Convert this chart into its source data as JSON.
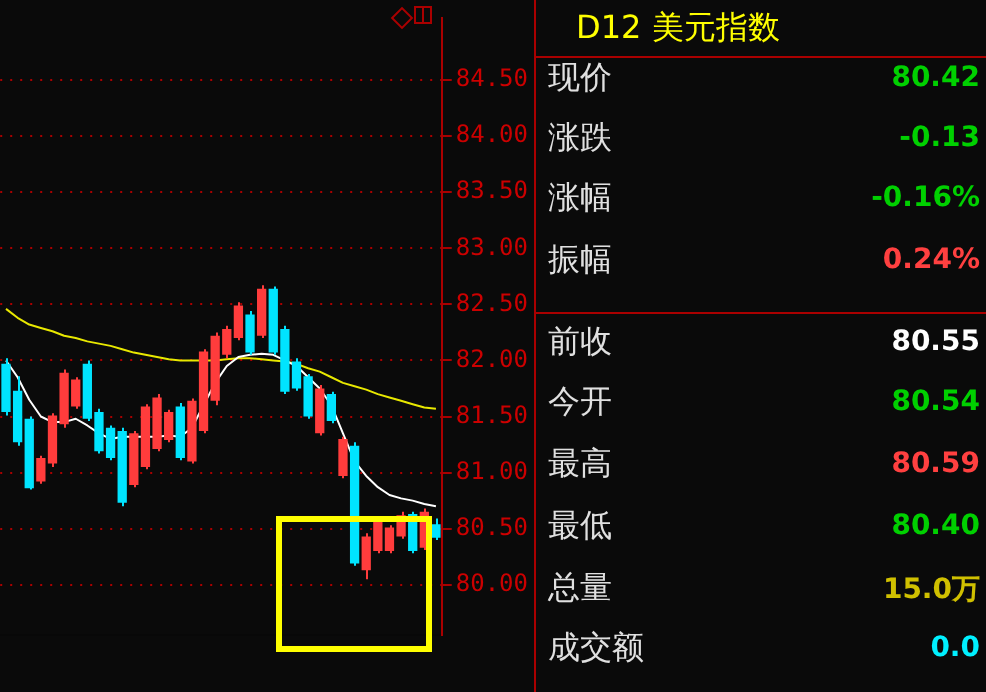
{
  "chart_data": [
    {
      "type": "candlestick",
      "categories": [
        null,
        null,
        null,
        null,
        null,
        null,
        null,
        null,
        null,
        null,
        null,
        null,
        null,
        null,
        null,
        null,
        null,
        null,
        null,
        null,
        null,
        null,
        null,
        null,
        null,
        null,
        null,
        null,
        null,
        null,
        null,
        null,
        null,
        null,
        null,
        null,
        null,
        null
      ],
      "ohlc": [
        [
          81.97,
          82.02,
          81.51,
          81.54
        ],
        [
          81.73,
          81.86,
          81.24,
          81.27
        ],
        [
          81.48,
          81.5,
          80.85,
          80.86
        ],
        [
          80.92,
          81.15,
          80.9,
          81.13
        ],
        [
          81.08,
          81.53,
          81.05,
          81.51
        ],
        [
          81.43,
          81.92,
          81.4,
          81.89
        ],
        [
          81.59,
          81.85,
          81.57,
          81.83
        ],
        [
          81.97,
          82.0,
          81.46,
          81.48
        ],
        [
          81.54,
          81.57,
          81.17,
          81.19
        ],
        [
          81.4,
          81.42,
          81.11,
          81.13
        ],
        [
          81.37,
          81.4,
          80.7,
          80.73
        ],
        [
          80.89,
          81.37,
          80.87,
          81.35
        ],
        [
          81.05,
          81.61,
          81.03,
          81.59
        ],
        [
          81.21,
          81.7,
          81.19,
          81.67
        ],
        [
          81.29,
          81.56,
          81.27,
          81.54
        ],
        [
          81.59,
          81.62,
          81.11,
          81.13
        ],
        [
          81.1,
          81.66,
          81.08,
          81.64
        ],
        [
          81.37,
          82.1,
          81.35,
          82.08
        ],
        [
          81.64,
          82.25,
          81.6,
          82.22
        ],
        [
          82.05,
          82.31,
          82.02,
          82.28
        ],
        [
          82.2,
          82.52,
          82.18,
          82.49
        ],
        [
          82.41,
          82.44,
          82.05,
          82.07
        ],
        [
          82.22,
          82.67,
          82.2,
          82.64
        ],
        [
          82.64,
          82.66,
          82.05,
          82.07
        ],
        [
          82.28,
          82.31,
          81.7,
          81.72
        ],
        [
          81.99,
          82.02,
          81.73,
          81.75
        ],
        [
          81.86,
          81.88,
          81.48,
          81.5
        ],
        [
          81.35,
          81.78,
          81.33,
          81.75
        ],
        [
          81.7,
          81.72,
          81.44,
          81.46
        ],
        [
          80.97,
          81.32,
          80.95,
          81.3
        ],
        [
          81.24,
          81.27,
          80.17,
          80.19
        ],
        [
          80.13,
          80.46,
          80.05,
          80.43
        ],
        [
          80.3,
          80.6,
          80.28,
          80.57
        ],
        [
          80.3,
          80.53,
          80.28,
          80.51
        ],
        [
          80.43,
          80.65,
          80.41,
          80.62
        ],
        [
          80.63,
          80.65,
          80.28,
          80.3
        ],
        [
          80.33,
          80.68,
          80.31,
          80.65
        ],
        [
          80.54,
          80.59,
          80.4,
          80.42
        ]
      ],
      "colors": [
        "#00e4ff",
        "#00e4ff",
        "#00e4ff",
        "#ff3c3c",
        "#ff3c3c",
        "#ff3c3c",
        "#ff3c3c",
        "#00e4ff",
        "#00e4ff",
        "#00e4ff",
        "#00e4ff",
        "#ff3c3c",
        "#ff3c3c",
        "#ff3c3c",
        "#ff3c3c",
        "#00e4ff",
        "#ff3c3c",
        "#ff3c3c",
        "#ff3c3c",
        "#ff3c3c",
        "#ff3c3c",
        "#00e4ff",
        "#ff3c3c",
        "#00e4ff",
        "#00e4ff",
        "#00e4ff",
        "#00e4ff",
        "#ff3c3c",
        "#00e4ff",
        "#ff3c3c",
        "#00e4ff",
        "#ff3c3c",
        "#ff3c3c",
        "#ff3c3c",
        "#ff3c3c",
        "#00e4ff",
        "#ff3c3c",
        "#00e4ff"
      ],
      "series": [
        {
          "type": "line",
          "color": "#ffffff",
          "values": [
            82.0,
            81.85,
            81.65,
            81.5,
            81.45,
            81.45,
            81.48,
            81.42,
            81.35,
            81.3,
            81.32,
            81.32,
            81.32,
            81.32,
            81.33,
            81.32,
            81.4,
            81.6,
            81.8,
            81.95,
            82.03,
            82.05,
            82.06,
            82.05,
            82.0,
            81.95,
            81.85,
            81.75,
            81.6,
            81.35,
            81.1,
            80.97,
            80.87,
            80.8,
            80.77,
            80.75,
            80.72,
            80.7
          ]
        },
        {
          "type": "line",
          "color": "#e8e800",
          "values": [
            82.46,
            82.38,
            82.32,
            82.29,
            82.26,
            82.22,
            82.2,
            82.17,
            82.15,
            82.13,
            82.1,
            82.07,
            82.05,
            82.03,
            82.01,
            82.0,
            82.0,
            82.0,
            82.0,
            82.01,
            82.02,
            82.02,
            82.01,
            82.0,
            81.99,
            81.97,
            81.93,
            81.9,
            81.85,
            81.8,
            81.77,
            81.74,
            81.7,
            81.67,
            81.64,
            81.61,
            81.58,
            81.57
          ]
        }
      ],
      "ylim": [
        79.55,
        85.05
      ],
      "yticks": [
        {
          "value": 80,
          "label": "80.00"
        },
        {
          "value": 80.5,
          "label": "80.50"
        },
        {
          "value": 81,
          "label": "81.00"
        },
        {
          "value": 81.5,
          "label": "81.50"
        },
        {
          "value": 82,
          "label": "82.00"
        },
        {
          "value": 82.5,
          "label": "82.50"
        },
        {
          "value": 83,
          "label": "83.00"
        },
        {
          "value": 83.5,
          "label": "83.50"
        },
        {
          "value": 84,
          "label": "84.00"
        },
        {
          "value": 84.5,
          "label": "84.50"
        }
      ],
      "grid": "y",
      "legend": false
    },
    {
      "type": "other",
      "title": "D12 美元指数",
      "annotations": [
        "现价",
        "80.42",
        "涨跌",
        "-0.13",
        "涨幅",
        "-0.16%",
        "振幅",
        "0.24%",
        "前收",
        "80.55",
        "今开",
        "80.54",
        "最高",
        "80.59",
        "最低",
        "80.40",
        "总量",
        "15.0万",
        "成交额",
        "0.0"
      ]
    }
  ]
}
